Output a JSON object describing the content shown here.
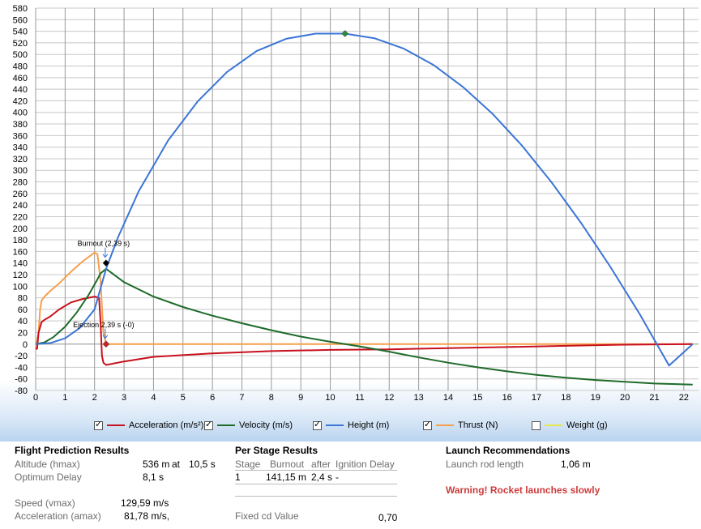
{
  "chart_data": {
    "type": "line",
    "title": "",
    "xlabel": "",
    "ylabel": "",
    "xlim": [
      0,
      22.5
    ],
    "ylim": [
      -80,
      580
    ],
    "grid": true,
    "x_ticks": [
      0,
      1,
      2,
      3,
      4,
      5,
      6,
      7,
      8,
      9,
      10,
      11,
      12,
      13,
      14,
      15,
      16,
      17,
      18,
      19,
      20,
      21,
      22
    ],
    "y_ticks": [
      -80,
      -60,
      -40,
      -20,
      0,
      20,
      40,
      60,
      80,
      100,
      120,
      140,
      160,
      180,
      200,
      220,
      240,
      260,
      280,
      300,
      320,
      340,
      360,
      380,
      400,
      420,
      440,
      460,
      480,
      500,
      520,
      540,
      560,
      580
    ],
    "series": [
      {
        "name": "Acceleration (m/s²)",
        "color": "#c8101e",
        "x": [
          0,
          0.05,
          0.1,
          0.2,
          0.3,
          0.5,
          0.8,
          1.2,
          1.6,
          2.0,
          2.15,
          2.2,
          2.25,
          2.3,
          2.39,
          3,
          4,
          6,
          8,
          10,
          12,
          14,
          16,
          18,
          20,
          22.3
        ],
        "y": [
          -8,
          -8,
          20,
          38,
          42,
          48,
          60,
          72,
          78,
          82,
          80,
          40,
          -20,
          -32,
          -36,
          -30,
          -22,
          -16,
          -12,
          -10,
          -9,
          -7,
          -5,
          -3,
          -1,
          0
        ]
      },
      {
        "name": "Velocity (m/s)",
        "color": "#1e6b2a",
        "x": [
          0,
          0.3,
          0.6,
          1.0,
          1.4,
          1.8,
          2.1,
          2.2,
          2.39,
          3,
          4,
          5,
          6,
          7,
          8,
          9,
          10,
          11,
          12,
          13,
          14,
          15,
          16,
          17,
          18,
          19,
          20,
          21,
          22.3
        ],
        "y": [
          0,
          3,
          12,
          30,
          55,
          85,
          112,
          122,
          130,
          107,
          82,
          64,
          49,
          36,
          24,
          13,
          4,
          -4,
          -13,
          -23,
          -32,
          -40,
          -47,
          -53,
          -58,
          -62,
          -65,
          -68,
          -70
        ]
      },
      {
        "name": "Height (m)",
        "color": "#3b75d6",
        "x": [
          0,
          0.5,
          1.0,
          1.5,
          2.0,
          2.39,
          2.8,
          3.5,
          4.5,
          5.5,
          6.5,
          7.5,
          8.5,
          9.5,
          10.5,
          11.5,
          12.5,
          13.5,
          14.5,
          15.5,
          16.5,
          17.5,
          18.5,
          19.5,
          20.5,
          21.5,
          22.3
        ],
        "y": [
          0,
          2,
          10,
          28,
          60,
          130,
          185,
          264,
          352,
          419,
          470,
          506,
          527,
          536,
          536,
          528,
          510,
          482,
          444,
          398,
          343,
          280,
          210,
          134,
          52,
          -37,
          0
        ]
      },
      {
        "name": "Thrust (N)",
        "color": "#f4a04c",
        "x": [
          0,
          0.1,
          0.15,
          0.2,
          0.3,
          0.5,
          0.8,
          1.2,
          1.6,
          2.0,
          2.1,
          2.2,
          2.3,
          2.39,
          3,
          22.3
        ],
        "y": [
          -8,
          20,
          60,
          75,
          82,
          92,
          105,
          125,
          143,
          158,
          155,
          110,
          20,
          0,
          0,
          0
        ]
      },
      {
        "name": "Weight (g)",
        "color": "#e8e84a",
        "x": [],
        "y": []
      }
    ],
    "annotations": [
      {
        "label": "Burnout (2,39 s)",
        "x": 2.39,
        "y": 140,
        "marker_color": "#000000"
      },
      {
        "label": "Ejection 2,39 s (-0)",
        "x": 2.39,
        "y": 0,
        "marker_color": "#cc2222"
      },
      {
        "label": "",
        "x": 10.5,
        "y": 536,
        "marker_color": "#2e8b3a"
      }
    ]
  },
  "legend": [
    {
      "label": "Acceleration (m/s²)",
      "checked": true,
      "color": "#c8101e"
    },
    {
      "label": "Velocity (m/s)",
      "checked": true,
      "color": "#1e6b2a"
    },
    {
      "label": "Height (m)",
      "checked": true,
      "color": "#3b75d6"
    },
    {
      "label": "Thrust (N)",
      "checked": true,
      "color": "#f4a04c"
    },
    {
      "label": "Weight (g)",
      "checked": false,
      "color": "#e8e84a"
    }
  ],
  "flight": {
    "title": "Flight Prediction Results",
    "altitude_label": "Altitude (hmax)",
    "altitude_value": "536 m",
    "altitude_at": "at",
    "altitude_time": "10,5 s",
    "delay_label": "Optimum Delay",
    "delay_value": "8,1 s",
    "speed_label": "Speed (vmax)",
    "speed_value": "129,59 m/s",
    "accel_label": "Acceleration (amax)",
    "accel_value": "81,78 m/s,"
  },
  "stage": {
    "title": "Per Stage Results",
    "col_stage": "Stage",
    "col_burnout": "Burnout",
    "col_after": "after",
    "col_delay": "Ignition Delay",
    "row_stage": "1",
    "row_burnout": "141,15 m",
    "row_after": "2,4 s",
    "row_delay": "-",
    "cd_label": "Fixed cd Value",
    "cd_value": "0,70"
  },
  "launch": {
    "title": "Launch Recommendations",
    "rod_label": "Launch rod length",
    "rod_value": "1,06 m",
    "warning": "Warning! Rocket launches slowly"
  }
}
